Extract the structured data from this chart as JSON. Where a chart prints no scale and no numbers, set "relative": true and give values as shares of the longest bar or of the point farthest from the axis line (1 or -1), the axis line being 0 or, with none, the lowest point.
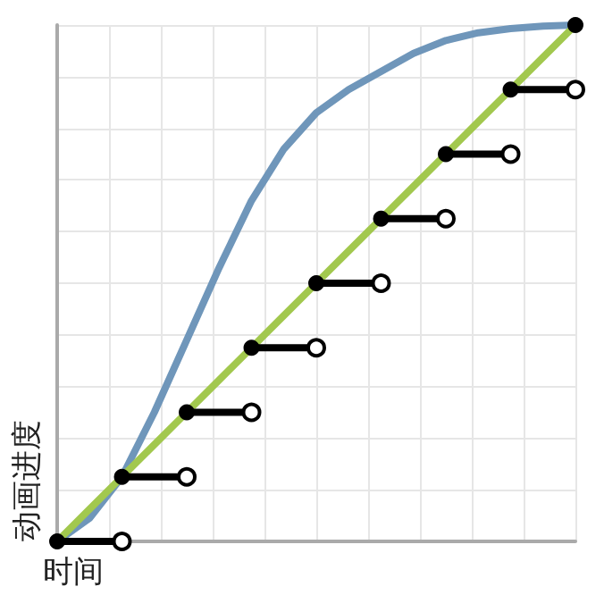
{
  "chart_data": {
    "type": "line",
    "relative": true,
    "xlabel": "时间",
    "ylabel": "动画进度",
    "grid": true,
    "marker": "circle",
    "categories": [
      null,
      null,
      null,
      null,
      null,
      null,
      null,
      null,
      null,
      null,
      null,
      null,
      null,
      null,
      null,
      null,
      null
    ],
    "series": [
      {
        "color": "#6f96ba",
        "marker": "none",
        "values": [
          0,
          0.045,
          0.125,
          0.25,
          0.39,
          0.53,
          0.66,
          0.76,
          0.83,
          0.875,
          0.91,
          0.945,
          0.97,
          0.985,
          0.993,
          0.998,
          1
        ]
      },
      {
        "color": "#a2c84e",
        "marker": "none",
        "values": [
          0,
          0.0625,
          0.125,
          0.1875,
          0.25,
          0.3125,
          0.375,
          0.4375,
          0.5,
          0.5625,
          0.625,
          0.6875,
          0.75,
          0.8125,
          0.875,
          0.9375,
          1
        ]
      },
      {
        "color": "#000000",
        "values": [
          0,
          null,
          0,
          null,
          null,
          null,
          null,
          null,
          null,
          null,
          null,
          null,
          null,
          null,
          null,
          null,
          null
        ]
      },
      {
        "color": "#000000",
        "values": [
          null,
          null,
          0.125,
          null,
          0.125,
          null,
          null,
          null,
          null,
          null,
          null,
          null,
          null,
          null,
          null,
          null,
          null
        ]
      },
      {
        "color": "#000000",
        "values": [
          null,
          null,
          null,
          null,
          0.25,
          null,
          0.25,
          null,
          null,
          null,
          null,
          null,
          null,
          null,
          null,
          null,
          null
        ]
      },
      {
        "color": "#000000",
        "values": [
          null,
          null,
          null,
          null,
          null,
          null,
          0.375,
          null,
          0.375,
          null,
          null,
          null,
          null,
          null,
          null,
          null,
          null
        ]
      },
      {
        "color": "#000000",
        "values": [
          null,
          null,
          null,
          null,
          null,
          null,
          null,
          null,
          0.5,
          null,
          0.5,
          null,
          null,
          null,
          null,
          null,
          null
        ]
      },
      {
        "color": "#000000",
        "values": [
          null,
          null,
          null,
          null,
          null,
          null,
          null,
          null,
          null,
          null,
          0.625,
          null,
          0.625,
          null,
          null,
          null,
          null
        ]
      },
      {
        "color": "#000000",
        "values": [
          null,
          null,
          null,
          null,
          null,
          null,
          null,
          null,
          null,
          null,
          null,
          null,
          0.75,
          null,
          0.75,
          null,
          null
        ]
      },
      {
        "color": "#000000",
        "values": [
          null,
          null,
          null,
          null,
          null,
          null,
          null,
          null,
          null,
          null,
          null,
          null,
          null,
          null,
          0.875,
          null,
          0.875
        ]
      },
      {
        "color": "#000000",
        "values": [
          null,
          null,
          null,
          null,
          null,
          null,
          null,
          null,
          null,
          null,
          null,
          null,
          null,
          null,
          null,
          null,
          1
        ]
      }
    ]
  }
}
